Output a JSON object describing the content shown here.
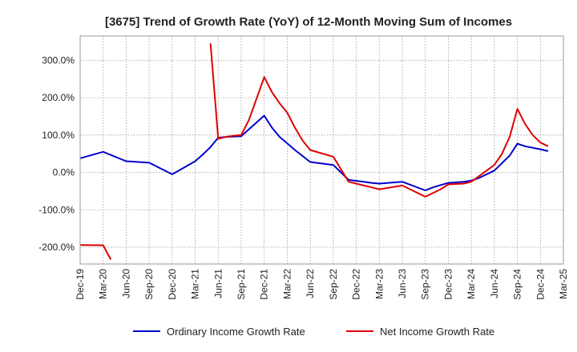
{
  "chart_data": {
    "type": "line",
    "title": "[3675]  Trend of Growth Rate (YoY) of 12-Month Moving Sum of Incomes",
    "xlabel": "",
    "ylabel": "",
    "x_tick_labels": [
      "Dec-19",
      "Mar-20",
      "Jun-20",
      "Sep-20",
      "Dec-20",
      "Mar-21",
      "Jun-21",
      "Sep-21",
      "Dec-21",
      "Mar-22",
      "Jun-22",
      "Sep-22",
      "Dec-22",
      "Mar-23",
      "Jun-23",
      "Sep-23",
      "Dec-23",
      "Mar-24",
      "Jun-24",
      "Sep-24",
      "Dec-24",
      "Mar-25"
    ],
    "y_tick_values": [
      -200,
      -100,
      0,
      100,
      200,
      300
    ],
    "y_tick_labels": [
      "-200.0%",
      "-100.0%",
      "0.0%",
      "100.0%",
      "200.0%",
      "300.0%"
    ],
    "ylim": [
      -245,
      365
    ],
    "x_month_range": [
      0,
      63
    ],
    "grid": true,
    "legend_position": "bottom",
    "series": [
      {
        "name": "Ordinary Income Growth Rate",
        "color": "#0000cc",
        "points": [
          [
            0,
            38
          ],
          [
            3,
            55
          ],
          [
            6,
            30
          ],
          [
            9,
            26
          ],
          [
            12,
            -5
          ],
          [
            15,
            30
          ],
          [
            16,
            48
          ],
          [
            17,
            68
          ],
          [
            18,
            93
          ],
          [
            19,
            95
          ],
          [
            21,
            97
          ],
          [
            24,
            152
          ],
          [
            25,
            120
          ],
          [
            26,
            95
          ],
          [
            27,
            78
          ],
          [
            28,
            60
          ],
          [
            30,
            28
          ],
          [
            33,
            20
          ],
          [
            34,
            0
          ],
          [
            35,
            -20
          ],
          [
            37,
            -25
          ],
          [
            38,
            -28
          ],
          [
            39,
            -30
          ],
          [
            42,
            -25
          ],
          [
            45,
            -48
          ],
          [
            46,
            -40
          ],
          [
            48,
            -28
          ],
          [
            50,
            -25
          ],
          [
            51,
            -22
          ],
          [
            52,
            -15
          ],
          [
            54,
            5
          ],
          [
            56,
            45
          ],
          [
            57,
            77
          ],
          [
            58,
            70
          ],
          [
            60,
            62
          ],
          [
            61,
            57
          ]
        ]
      },
      {
        "name": "Net Income Growth Rate",
        "color": "#dd0000",
        "segments": [
          [
            [
              0,
              -194
            ],
            [
              3,
              -195
            ],
            [
              4,
              -233
            ]
          ],
          [
            [
              17,
              345
            ],
            [
              18,
              90
            ],
            [
              19,
              95
            ],
            [
              20,
              98
            ],
            [
              21,
              100
            ],
            [
              22,
              140
            ],
            [
              24,
              255
            ],
            [
              25,
              215
            ],
            [
              26,
              185
            ],
            [
              27,
              160
            ],
            [
              28,
              120
            ],
            [
              29,
              85
            ],
            [
              30,
              60
            ],
            [
              33,
              42
            ],
            [
              35,
              -25
            ],
            [
              37,
              -35
            ],
            [
              38,
              -40
            ],
            [
              39,
              -45
            ],
            [
              42,
              -35
            ],
            [
              44,
              -55
            ],
            [
              45,
              -65
            ],
            [
              47,
              -45
            ],
            [
              48,
              -32
            ],
            [
              50,
              -30
            ],
            [
              51,
              -25
            ],
            [
              52,
              -10
            ],
            [
              54,
              20
            ],
            [
              55,
              50
            ],
            [
              56,
              95
            ],
            [
              57,
              170
            ],
            [
              58,
              130
            ],
            [
              59,
              100
            ],
            [
              60,
              80
            ],
            [
              61,
              70
            ]
          ]
        ]
      }
    ]
  }
}
